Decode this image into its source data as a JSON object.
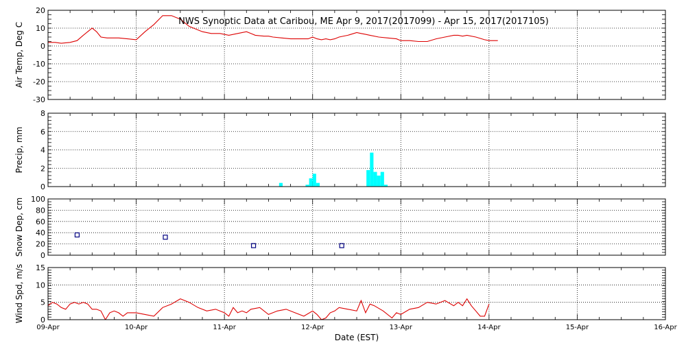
{
  "title": "NWS Synoptic Data at Caribou, ME   Apr  9, 2017(2017099) - Apr 15, 2017(2017105)",
  "xlabel": "Date (EST)",
  "x_ticks": [
    "09-Apr",
    "10-Apr",
    "11-Apr",
    "12-Apr",
    "13-Apr",
    "14-Apr",
    "15-Apr",
    "16-Apr"
  ],
  "colors": {
    "line": "#dd0000",
    "precip": "#00ffff",
    "snow": "#000080",
    "grid": "#000000"
  },
  "chart_data": [
    {
      "type": "line",
      "ylabel": "Air Temp, Deg C",
      "ylim": [
        -30,
        20
      ],
      "yticks": [
        -30,
        -20,
        -10,
        0,
        10,
        20
      ],
      "xlim": [
        0,
        7
      ],
      "grid": "dotted",
      "series": [
        {
          "x": [
            0,
            0.08,
            0.15,
            0.25,
            0.33,
            0.4,
            0.5,
            0.55,
            0.6,
            0.67,
            0.75,
            0.8,
            0.9,
            1.0,
            1.1,
            1.2,
            1.3,
            1.4,
            1.5,
            1.55,
            1.6,
            1.65,
            1.7,
            1.75,
            1.85,
            1.95,
            2.05,
            2.15,
            2.25,
            2.3,
            2.35,
            2.45,
            2.5,
            2.55,
            2.65,
            2.75,
            2.85,
            2.95,
            3.0,
            3.05,
            3.1,
            3.15,
            3.2,
            3.25,
            3.3,
            3.4,
            3.5,
            3.55,
            3.6,
            3.65,
            3.75,
            3.85,
            3.95,
            4.0,
            4.1,
            4.2,
            4.3,
            4.4,
            4.5,
            4.6,
            4.65,
            4.7,
            4.75,
            4.85,
            4.95,
            5.0,
            5.1
          ],
          "y": [
            2,
            2,
            1.5,
            2,
            3,
            6,
            10,
            8,
            5,
            4.5,
            4.5,
            4.5,
            4,
            3.5,
            8,
            12,
            17,
            17,
            15,
            13,
            11,
            10,
            9,
            8,
            7,
            7,
            6,
            7,
            8,
            7,
            6,
            5.5,
            5.5,
            5,
            4.5,
            4,
            4,
            4,
            5,
            4,
            3.5,
            4,
            3.5,
            4,
            5,
            6,
            7.5,
            7,
            6.5,
            6,
            5,
            4.5,
            4,
            3,
            3,
            2.5,
            2.5,
            4,
            5,
            6,
            6,
            5.5,
            6,
            5,
            3.5,
            3,
            3
          ]
        }
      ]
    },
    {
      "type": "bar",
      "ylabel": "Precip, mm",
      "ylim": [
        0,
        8
      ],
      "yticks": [
        0,
        2,
        4,
        6,
        8
      ],
      "xlim": [
        0,
        7
      ],
      "grid": "dotted",
      "series": [
        {
          "x": [
            2.64,
            2.94,
            2.98,
            3.02,
            3.06,
            3.63,
            3.67,
            3.71,
            3.75,
            3.79,
            3.83
          ],
          "values": [
            0.4,
            0.2,
            0.9,
            1.4,
            0.4,
            1.8,
            3.7,
            1.6,
            1.2,
            1.6,
            0.2
          ]
        }
      ]
    },
    {
      "type": "scatter",
      "ylabel": "Snow Dep, cm",
      "ylim": [
        0,
        100
      ],
      "yticks": [
        0,
        20,
        40,
        60,
        80,
        100
      ],
      "xlim": [
        0,
        7
      ],
      "grid": "dotted",
      "series": [
        {
          "x": [
            0.33,
            1.33,
            2.33,
            3.33
          ],
          "y": [
            36,
            32,
            17,
            17
          ]
        }
      ]
    },
    {
      "type": "line",
      "ylabel": "Wind Spd, m/s",
      "ylim": [
        0,
        15
      ],
      "yticks": [
        0,
        5,
        10,
        15
      ],
      "xlim": [
        0,
        7
      ],
      "grid": "dotted",
      "series": [
        {
          "x": [
            0,
            0.05,
            0.1,
            0.15,
            0.2,
            0.25,
            0.3,
            0.35,
            0.4,
            0.45,
            0.5,
            0.55,
            0.6,
            0.65,
            0.7,
            0.75,
            0.8,
            0.85,
            0.9,
            0.95,
            1.0,
            1.1,
            1.2,
            1.3,
            1.4,
            1.5,
            1.6,
            1.7,
            1.8,
            1.9,
            2.0,
            2.05,
            2.1,
            2.15,
            2.2,
            2.25,
            2.3,
            2.4,
            2.5,
            2.6,
            2.7,
            2.8,
            2.9,
            3.0,
            3.05,
            3.1,
            3.15,
            3.2,
            3.25,
            3.3,
            3.4,
            3.5,
            3.55,
            3.6,
            3.65,
            3.7,
            3.8,
            3.9,
            3.95,
            4.0,
            4.1,
            4.2,
            4.3,
            4.4,
            4.5,
            4.6,
            4.65,
            4.7,
            4.75,
            4.8,
            4.85,
            4.9,
            4.95,
            5.0
          ],
          "y": [
            4,
            5,
            4.5,
            3.5,
            3,
            4.5,
            5,
            4.5,
            5,
            4.5,
            3,
            3,
            2.5,
            0,
            2,
            2.5,
            2,
            1,
            2,
            2,
            2,
            1.5,
            1,
            3.5,
            4.5,
            6,
            5,
            3.5,
            2.5,
            3,
            2,
            1,
            3.5,
            2,
            2.5,
            2,
            3,
            3.5,
            1.5,
            2.5,
            3,
            2,
            1,
            2.5,
            1.5,
            0,
            0.5,
            2,
            2.5,
            3.5,
            3,
            2.5,
            5.5,
            2,
            4.5,
            4,
            2.5,
            0.5,
            2,
            1.5,
            3,
            3.5,
            5,
            4.5,
            5.5,
            4,
            5,
            4,
            6,
            4,
            2.5,
            1,
            1,
            4.5
          ]
        }
      ]
    }
  ]
}
